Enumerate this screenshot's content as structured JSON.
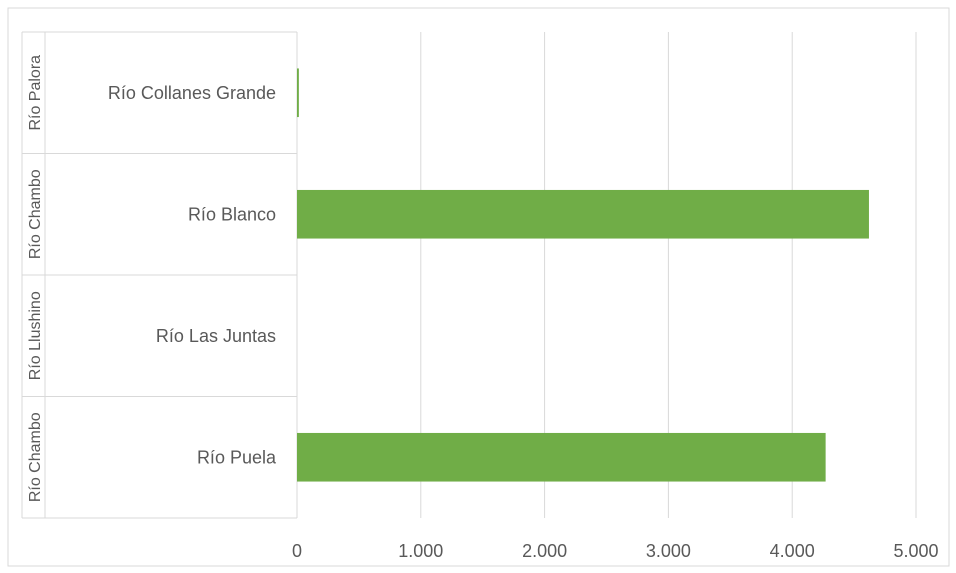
{
  "chart_data": {
    "type": "bar",
    "orientation": "horizontal",
    "categories": [
      "Río Puela",
      "Río Las Juntas",
      "Río Blanco",
      "Río Collanes Grande"
    ],
    "groups": [
      "Río Chambo",
      "Río Llushino",
      "Río Chambo",
      "Río Palora"
    ],
    "values": [
      4270,
      0,
      4620,
      15
    ],
    "xlim": [
      0,
      5000
    ],
    "x_ticks": [
      0,
      1000,
      2000,
      3000,
      4000,
      5000
    ],
    "x_tick_labels": [
      "0",
      "1.000",
      "2.000",
      "3.000",
      "4.000",
      "5.000"
    ],
    "grid": true,
    "legend": "none",
    "bar_color": "#70AD47",
    "gridline_color": "#D9D9D9",
    "text_color": "#595959",
    "title": "",
    "xlabel": "",
    "ylabel": ""
  }
}
